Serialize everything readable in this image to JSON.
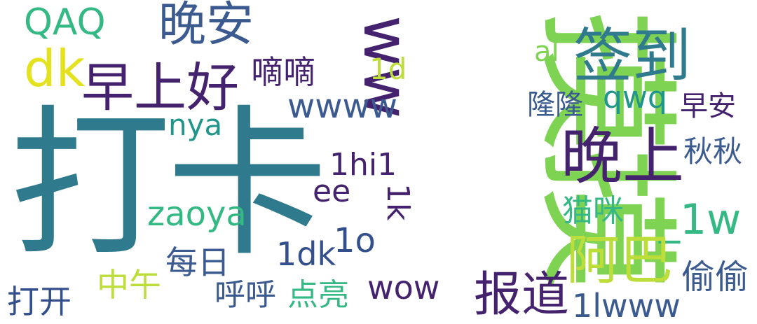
{
  "title": "",
  "palette": {
    "teal": "#2f7a8c",
    "green": "#7ed352",
    "blue": "#3b5a8f",
    "purple": "#45226e",
    "lime": "#bddd3a",
    "mint": "#34b884",
    "cyan": "#20958c",
    "yellow": "#e4e21f",
    "darkblue": "#34508c"
  },
  "words": [
    {
      "text": "打卡",
      "color": "#2f7a8c",
      "orientation": "horizontal"
    },
    {
      "text": "摸摸",
      "color": "#7ed352",
      "orientation": "vertical"
    },
    {
      "text": "晚安",
      "color": "#3b5a8f",
      "orientation": "horizontal"
    },
    {
      "text": "签到",
      "color": "#2f7a8c",
      "orientation": "horizontal"
    },
    {
      "text": "早上好",
      "color": "#45226e",
      "orientation": "horizontal"
    },
    {
      "text": "晚上",
      "color": "#45226e",
      "orientation": "horizontal"
    },
    {
      "text": "QAQ",
      "color": "#34b884",
      "orientation": "horizontal"
    },
    {
      "text": "dk",
      "color": "#e4e21f",
      "orientation": "horizontal"
    },
    {
      "text": "ww",
      "color": "#45226e",
      "orientation": "vertical"
    },
    {
      "text": "1d",
      "color": "#bddd3a",
      "orientation": "horizontal"
    },
    {
      "text": "al",
      "color": "#7ed352",
      "orientation": "horizontal"
    },
    {
      "text": "嘀嘀",
      "color": "#45226e",
      "orientation": "horizontal"
    },
    {
      "text": "wwww",
      "color": "#3b5a8f",
      "orientation": "horizontal"
    },
    {
      "text": "隆隆",
      "color": "#3b5a8f",
      "orientation": "horizontal"
    },
    {
      "text": "qwq",
      "color": "#20958c",
      "orientation": "horizontal"
    },
    {
      "text": "早安",
      "color": "#45226e",
      "orientation": "horizontal"
    },
    {
      "text": "nya",
      "color": "#20958c",
      "orientation": "horizontal"
    },
    {
      "text": "秋秋",
      "color": "#3b5a8f",
      "orientation": "horizontal"
    },
    {
      "text": "1hi1",
      "color": "#45226e",
      "orientation": "horizontal"
    },
    {
      "text": "ee",
      "color": "#45226e",
      "orientation": "horizontal"
    },
    {
      "text": "1k",
      "color": "#45226e",
      "orientation": "vertical"
    },
    {
      "text": "zaoya",
      "color": "#34b884",
      "orientation": "horizontal"
    },
    {
      "text": "猫咪",
      "color": "#34b884",
      "orientation": "horizontal"
    },
    {
      "text": "_1w",
      "color": "#34b884",
      "orientation": "horizontal"
    },
    {
      "text": "1o",
      "color": "#34508c",
      "orientation": "horizontal"
    },
    {
      "text": "1dk",
      "color": "#34508c",
      "orientation": "horizontal"
    },
    {
      "text": "阿巴",
      "color": "#bddd3a",
      "orientation": "horizontal"
    },
    {
      "text": "每日",
      "color": "#3b5a8f",
      "orientation": "horizontal"
    },
    {
      "text": "中午",
      "color": "#bddd3a",
      "orientation": "horizontal"
    },
    {
      "text": "报道",
      "color": "#45226e",
      "orientation": "horizontal"
    },
    {
      "text": "偷偷",
      "color": "#3b5a8f",
      "orientation": "horizontal"
    },
    {
      "text": "打开",
      "color": "#34508c",
      "orientation": "horizontal"
    },
    {
      "text": "呼呼",
      "color": "#3b5a8f",
      "orientation": "horizontal"
    },
    {
      "text": "点亮",
      "color": "#34b884",
      "orientation": "horizontal"
    },
    {
      "text": "wow",
      "color": "#45226e",
      "orientation": "horizontal"
    },
    {
      "text": "1lwww",
      "color": "#3b5a8f",
      "orientation": "horizontal"
    }
  ]
}
